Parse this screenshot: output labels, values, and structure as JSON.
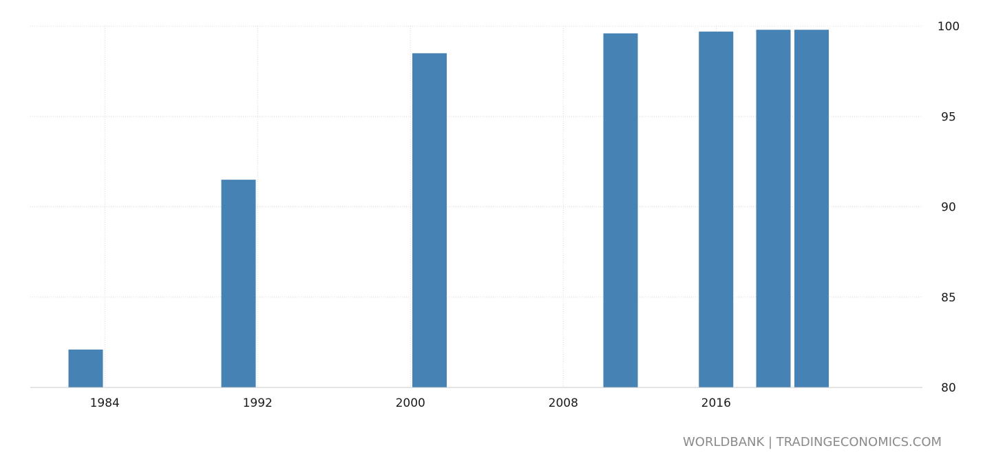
{
  "chart_data": {
    "type": "bar",
    "x": [
      1983,
      1991,
      2001,
      2011,
      2016,
      2019,
      2021
    ],
    "values": [
      82.1,
      91.5,
      98.5,
      99.6,
      99.7,
      99.8,
      99.8
    ],
    "bar_color": "#4682b4",
    "xlim": [
      1980.1,
      2026.8
    ],
    "ylim": [
      80,
      100
    ],
    "x_ticks": [
      "1984",
      "1992",
      "2000",
      "2008",
      "2016"
    ],
    "y_ticks": [
      "80",
      "85",
      "90",
      "95",
      "100"
    ],
    "grid": true,
    "y_axis_position": "right"
  },
  "footer": {
    "source": "WORLDBANK | TRADINGECONOMICS.COM"
  }
}
